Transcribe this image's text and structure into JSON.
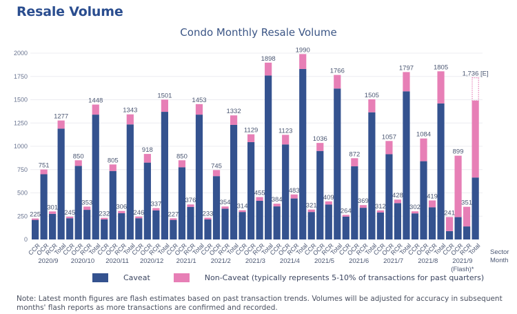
{
  "header": {
    "title": "Resale Volume"
  },
  "chart_data": {
    "type": "bar",
    "stacked": true,
    "title": "Condo Monthly Resale Volume",
    "xlabel": "Sector / Month",
    "x_axis_names": [
      "Sector",
      "Month"
    ],
    "ylabel": "",
    "ylim": [
      0,
      2000
    ],
    "yticks": [
      0,
      250,
      500,
      750,
      1000,
      1250,
      1500,
      1750,
      2000
    ],
    "grid": true,
    "legend_position": "bottom",
    "colors": {
      "caveat": "#34528f",
      "non_caveat": "#e77fb6",
      "label": "#4a5672"
    },
    "sectors": [
      "CCR",
      "OCR",
      "RCR",
      "Total"
    ],
    "months": [
      {
        "label": "2020/9",
        "sub": ""
      },
      {
        "label": "2020/10",
        "sub": ""
      },
      {
        "label": "2020/11",
        "sub": ""
      },
      {
        "label": "2020/12",
        "sub": ""
      },
      {
        "label": "2021/1",
        "sub": ""
      },
      {
        "label": "2021/2",
        "sub": ""
      },
      {
        "label": "2021/3",
        "sub": ""
      },
      {
        "label": "2021/4",
        "sub": ""
      },
      {
        "label": "2021/5",
        "sub": ""
      },
      {
        "label": "2021/6",
        "sub": ""
      },
      {
        "label": "2021/7",
        "sub": ""
      },
      {
        "label": "2021/8",
        "sub": ""
      },
      {
        "label": "2021/9",
        "sub": "(Flash)*"
      }
    ],
    "series": [
      {
        "name": "Caveat",
        "values": [
          210,
          700,
          275,
          1190,
          228,
          790,
          318,
          1340,
          215,
          735,
          282,
          1235,
          228,
          825,
          312,
          1370,
          210,
          775,
          350,
          1340,
          215,
          680,
          330,
          1230,
          295,
          1045,
          415,
          1760,
          355,
          1020,
          440,
          1830,
          295,
          950,
          375,
          1620,
          245,
          785,
          340,
          1365,
          290,
          915,
          390,
          1590,
          280,
          840,
          345,
          1460,
          90,
          240,
          140,
          665
        ]
      },
      {
        "name": "Non-Caveat",
        "values": [
          15,
          51,
          26,
          87,
          17,
          60,
          35,
          108,
          17,
          70,
          24,
          108,
          18,
          93,
          25,
          131,
          17,
          75,
          26,
          113,
          18,
          65,
          24,
          102,
          19,
          84,
          40,
          138,
          29,
          103,
          43,
          160,
          26,
          86,
          34,
          146,
          19,
          87,
          29,
          140,
          22,
          142,
          38,
          207,
          22,
          244,
          74,
          345,
          151,
          659,
          211,
          825
        ]
      }
    ],
    "totals_labels": [
      "225",
      "751",
      "301",
      "1277",
      "245",
      "850",
      "353",
      "1448",
      "232",
      "805",
      "306",
      "1343",
      "246",
      "918",
      "337",
      "1501",
      "227",
      "850",
      "376",
      "1453",
      "233",
      "745",
      "354",
      "1332",
      "314",
      "1129",
      "455",
      "1898",
      "384",
      "1123",
      "483",
      "1990",
      "321",
      "1036",
      "409",
      "1766",
      "264",
      "872",
      "369",
      "1505",
      "312",
      "1057",
      "428",
      "1797",
      "302",
      "1084",
      "419",
      "1805",
      "241",
      "899",
      "351",
      "1,736 [E]"
    ],
    "estimate": {
      "bar_index": 51,
      "estimated_total": 1736,
      "label": "1,736 [E]"
    }
  },
  "legend": {
    "items": [
      {
        "label": "Caveat",
        "color": "#34528f"
      },
      {
        "label": "Non-Caveat (typically represents 5-10% of transactions for past quarters)",
        "color": "#e77fb6"
      }
    ]
  },
  "note": "Note: Latest month figures are flash estimates based on past transaction trends. Volumes will be adjusted for accuracy in subsequent months' flash reports as more transactions are confirmed and recorded."
}
